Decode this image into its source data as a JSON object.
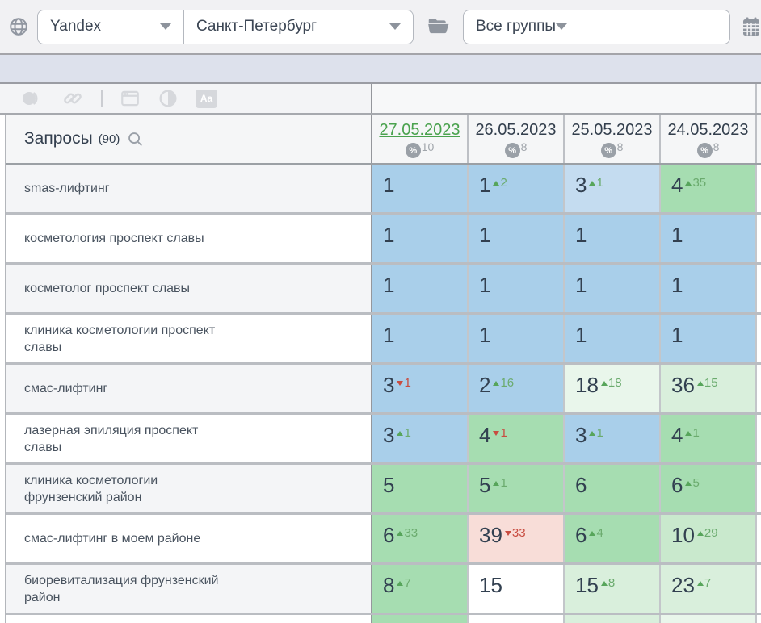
{
  "topbar": {
    "search_engine": "Yandex",
    "region": "Санкт-Петербург",
    "group_filter": "Все группы"
  },
  "toolbar": {
    "icons": [
      "highlight-circles-icon",
      "link-icon",
      "window-icon",
      "contrast-icon",
      "font-case-icon"
    ],
    "font_icon_label": "Aa"
  },
  "table": {
    "queries_header": "Запросы",
    "queries_count": "(90)",
    "percent_symbol": "%",
    "columns": [
      {
        "date": "27.05.2023",
        "percent": "10",
        "active": true
      },
      {
        "date": "26.05.2023",
        "percent": "8",
        "active": false
      },
      {
        "date": "25.05.2023",
        "percent": "8",
        "active": false
      },
      {
        "date": "24.05.2023",
        "percent": "8",
        "active": false
      }
    ],
    "rows": [
      {
        "query": "smas-лифтинг",
        "cells": [
          {
            "value": "1",
            "bg": "blue"
          },
          {
            "value": "1",
            "delta": "2",
            "dir": "up",
            "bg": "blue"
          },
          {
            "value": "3",
            "delta": "1",
            "dir": "up",
            "bg": "blue_light"
          },
          {
            "value": "4",
            "delta": "35",
            "dir": "up",
            "bg": "green"
          }
        ]
      },
      {
        "query": "косметология проспект славы",
        "cells": [
          {
            "value": "1",
            "bg": "blue"
          },
          {
            "value": "1",
            "bg": "blue"
          },
          {
            "value": "1",
            "bg": "blue"
          },
          {
            "value": "1",
            "bg": "blue"
          }
        ]
      },
      {
        "query": "косметолог проспект славы",
        "cells": [
          {
            "value": "1",
            "bg": "blue"
          },
          {
            "value": "1",
            "bg": "blue"
          },
          {
            "value": "1",
            "bg": "blue"
          },
          {
            "value": "1",
            "bg": "blue"
          }
        ]
      },
      {
        "query": "клиника косметологии проспект славы",
        "cells": [
          {
            "value": "1",
            "bg": "blue"
          },
          {
            "value": "1",
            "bg": "blue"
          },
          {
            "value": "1",
            "bg": "blue"
          },
          {
            "value": "1",
            "bg": "blue"
          }
        ]
      },
      {
        "query": "смас-лифтинг",
        "cells": [
          {
            "value": "3",
            "delta": "1",
            "dir": "down",
            "bg": "blue"
          },
          {
            "value": "2",
            "delta": "16",
            "dir": "up",
            "bg": "blue"
          },
          {
            "value": "18",
            "delta": "18",
            "dir": "up",
            "bg": "green_pale"
          },
          {
            "value": "36",
            "delta": "15",
            "dir": "up",
            "bg": "green_light"
          }
        ]
      },
      {
        "query": "лазерная эпиляция проспект славы",
        "cells": [
          {
            "value": "3",
            "delta": "1",
            "dir": "up",
            "bg": "blue"
          },
          {
            "value": "4",
            "delta": "1",
            "dir": "down",
            "bg": "green"
          },
          {
            "value": "3",
            "delta": "1",
            "dir": "up",
            "bg": "blue"
          },
          {
            "value": "4",
            "delta": "1",
            "dir": "up",
            "bg": "green"
          }
        ]
      },
      {
        "query": "клиника косметологии фрунзенский район",
        "cells": [
          {
            "value": "5",
            "bg": "green"
          },
          {
            "value": "5",
            "delta": "1",
            "dir": "up",
            "bg": "green"
          },
          {
            "value": "6",
            "bg": "green"
          },
          {
            "value": "6",
            "delta": "5",
            "dir": "up",
            "bg": "green"
          }
        ]
      },
      {
        "query": "смас-лифтинг в моем районе",
        "cells": [
          {
            "value": "6",
            "delta": "33",
            "dir": "up",
            "bg": "green"
          },
          {
            "value": "39",
            "delta": "33",
            "dir": "down",
            "bg": "red_pale"
          },
          {
            "value": "6",
            "delta": "4",
            "dir": "up",
            "bg": "green"
          },
          {
            "value": "10",
            "delta": "29",
            "dir": "up",
            "bg": "green_mid"
          }
        ]
      },
      {
        "query": "биоревитализация фрунзенский район",
        "cells": [
          {
            "value": "8",
            "delta": "7",
            "dir": "up",
            "bg": "green"
          },
          {
            "value": "15",
            "bg": "white"
          },
          {
            "value": "15",
            "delta": "8",
            "dir": "up",
            "bg": "green_light"
          },
          {
            "value": "23",
            "delta": "7",
            "dir": "up",
            "bg": "green_light"
          }
        ]
      }
    ],
    "partial_row_bgs": [
      "green",
      "white",
      "green_light",
      "green_pale"
    ]
  },
  "colors": {
    "blue": "#a9cfea",
    "blue_light": "#c4dcf0",
    "green": "#a6ddb1",
    "green_mid": "#c9e9cd",
    "green_light": "#d9efdc",
    "green_pale": "#e9f6eb",
    "red_pale": "#f8ddd8",
    "white": "#ffffff",
    "accent_green": "#4aa24e",
    "accent_red": "#c84c40",
    "text_dark": "#324050"
  }
}
